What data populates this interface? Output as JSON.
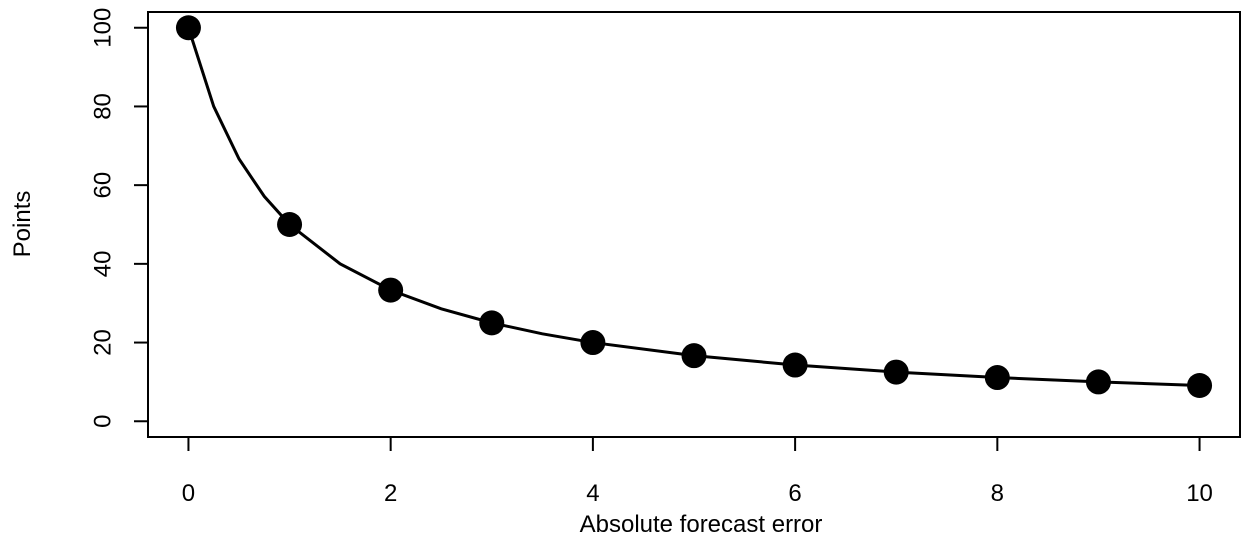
{
  "chart_data": {
    "type": "line",
    "title": "",
    "xlabel": "Absolute forecast error",
    "ylabel": "Points",
    "xlim": [
      -0.4,
      10.4
    ],
    "ylim": [
      -4,
      104
    ],
    "xticks": [
      0,
      2,
      4,
      6,
      8,
      10
    ],
    "yticks": [
      0,
      20,
      40,
      60,
      80,
      100
    ],
    "xtick_labels": [
      "0",
      "2",
      "4",
      "6",
      "8",
      "10"
    ],
    "ytick_labels": [
      "0",
      "20",
      "40",
      "60",
      "80",
      "100"
    ],
    "grid": false,
    "legend": "none",
    "series": [
      {
        "type": "line",
        "curve": "100/(1+x)",
        "x": [
          0,
          0.25,
          0.5,
          0.75,
          1,
          1.5,
          2,
          2.5,
          3,
          3.5,
          4,
          5,
          6,
          7,
          8,
          9,
          10
        ],
        "y": [
          100,
          80,
          66.67,
          57.14,
          50,
          40,
          33.33,
          28.57,
          25,
          22.22,
          20,
          16.67,
          14.29,
          12.5,
          11.11,
          10,
          9.09
        ],
        "color": "#000000"
      },
      {
        "type": "scatter",
        "x": [
          0,
          1,
          2,
          3,
          4,
          5,
          6,
          7,
          8,
          9,
          10
        ],
        "y": [
          100,
          50,
          33.33,
          25,
          20,
          16.67,
          14.29,
          12.5,
          11.11,
          10,
          9.09
        ],
        "color": "#000000"
      }
    ]
  }
}
